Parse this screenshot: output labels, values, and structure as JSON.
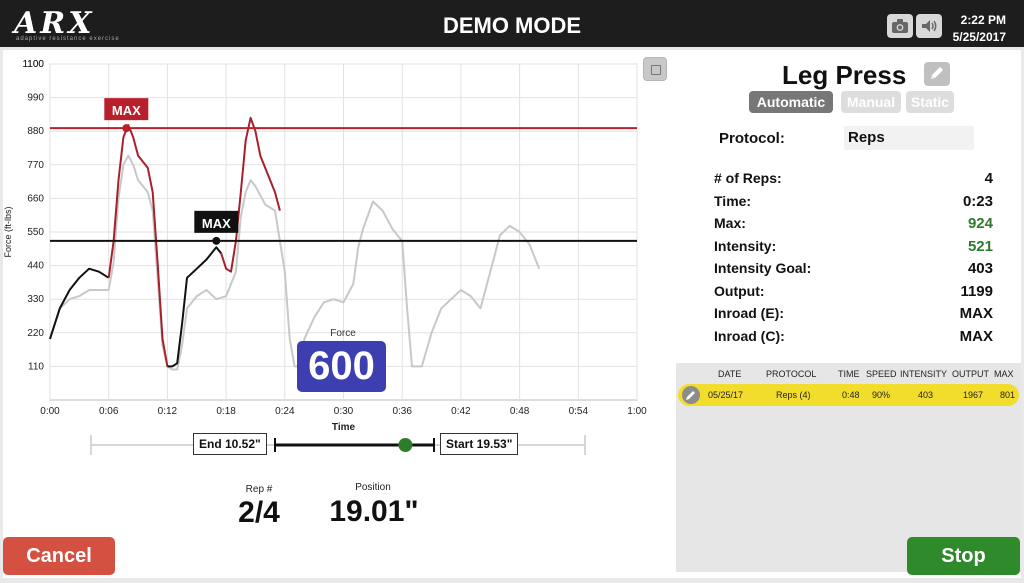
{
  "header": {
    "logo_text": "ARX",
    "logo_subtitle": "adaptive resistance exercise",
    "mode_title": "DEMO MODE",
    "time": "2:22 PM",
    "date": "5/25/2017",
    "camera_icon": "camera-icon",
    "sound_icon": "speaker-icon"
  },
  "chart_data": {
    "type": "line",
    "ylabel": "Force (ft-lbs)",
    "xlabel": "Time",
    "y_ticks": [
      "1100",
      "990",
      "880",
      "770",
      "660",
      "550",
      "440",
      "330",
      "220",
      "110"
    ],
    "x_ticks": [
      "0:00",
      "0:06",
      "0:12",
      "0:18",
      "0:24",
      "0:30",
      "0:36",
      "0:42",
      "0:48",
      "0:54",
      "1:00"
    ],
    "ylim": [
      0,
      1100
    ],
    "xlim": [
      0,
      60
    ],
    "grid": true,
    "reference_lines": [
      {
        "name": "MAX",
        "value": 890,
        "color": "#b8202c",
        "marker_x": 7.8
      },
      {
        "name": "MAX",
        "value": 521,
        "color": "#111111",
        "marker_x": 17.0
      }
    ],
    "series": [
      {
        "color": "#c8c8c8",
        "points": [
          [
            0,
            200
          ],
          [
            1,
            300
          ],
          [
            2,
            330
          ],
          [
            3,
            340
          ],
          [
            4,
            360
          ],
          [
            5,
            360
          ],
          [
            6,
            360
          ],
          [
            6.5,
            450
          ],
          [
            7,
            660
          ],
          [
            7.5,
            770
          ],
          [
            8,
            800
          ],
          [
            8.5,
            770
          ],
          [
            9,
            720
          ],
          [
            10,
            680
          ],
          [
            10.5,
            620
          ],
          [
            11,
            400
          ],
          [
            11.5,
            180
          ],
          [
            12,
            110
          ],
          [
            12.5,
            100
          ],
          [
            13,
            100
          ],
          [
            13.5,
            180
          ],
          [
            14,
            300
          ],
          [
            15,
            340
          ],
          [
            16,
            360
          ],
          [
            17,
            330
          ],
          [
            18,
            340
          ],
          [
            19,
            420
          ],
          [
            19.5,
            600
          ],
          [
            20,
            680
          ],
          [
            20.5,
            720
          ],
          [
            21,
            700
          ],
          [
            22,
            640
          ],
          [
            23,
            620
          ],
          [
            24,
            420
          ],
          [
            24.5,
            200
          ],
          [
            25,
            110
          ],
          [
            25.5,
            110
          ],
          [
            26,
            200
          ],
          [
            27,
            270
          ],
          [
            28,
            320
          ],
          [
            29,
            330
          ],
          [
            30,
            320
          ],
          [
            31,
            380
          ],
          [
            31.5,
            500
          ],
          [
            32,
            560
          ],
          [
            33,
            650
          ],
          [
            34,
            620
          ],
          [
            35,
            560
          ],
          [
            36,
            520
          ],
          [
            36.5,
            300
          ],
          [
            37,
            110
          ],
          [
            38,
            110
          ],
          [
            39,
            220
          ],
          [
            40,
            300
          ],
          [
            41,
            330
          ],
          [
            42,
            360
          ],
          [
            43,
            340
          ],
          [
            44,
            300
          ],
          [
            45,
            420
          ],
          [
            46,
            540
          ],
          [
            47,
            570
          ],
          [
            48,
            550
          ],
          [
            49,
            510
          ],
          [
            49.5,
            470
          ],
          [
            50,
            430
          ]
        ]
      },
      {
        "color": "#111111",
        "points": [
          [
            0,
            200
          ],
          [
            0.5,
            250
          ],
          [
            1,
            300
          ],
          [
            2,
            360
          ],
          [
            3,
            400
          ],
          [
            4,
            430
          ],
          [
            5,
            420
          ],
          [
            6,
            400
          ]
        ]
      },
      {
        "color": "#a8202c",
        "points": [
          [
            6,
            400
          ],
          [
            6.5,
            520
          ],
          [
            7,
            720
          ],
          [
            7.5,
            860
          ],
          [
            8,
            900
          ],
          [
            8.5,
            860
          ],
          [
            9,
            800
          ],
          [
            10,
            760
          ],
          [
            10.5,
            680
          ],
          [
            11,
            450
          ],
          [
            11.5,
            200
          ],
          [
            12,
            110
          ]
        ]
      },
      {
        "color": "#111111",
        "points": [
          [
            12,
            110
          ],
          [
            12.5,
            110
          ],
          [
            13,
            120
          ],
          [
            13.5,
            250
          ],
          [
            14,
            400
          ],
          [
            15,
            430
          ],
          [
            16,
            460
          ],
          [
            17,
            500
          ],
          [
            17.5,
            480
          ]
        ]
      },
      {
        "color": "#a8202c",
        "points": [
          [
            17.5,
            480
          ],
          [
            18,
            430
          ],
          [
            18.5,
            420
          ],
          [
            19,
            520
          ],
          [
            19.5,
            680
          ],
          [
            20,
            850
          ],
          [
            20.5,
            924
          ],
          [
            21,
            880
          ],
          [
            21.5,
            800
          ],
          [
            22,
            760
          ],
          [
            23,
            680
          ],
          [
            23.5,
            620
          ]
        ]
      }
    ]
  },
  "chart": {
    "max_tag_label": "MAX",
    "force_caption": "Force",
    "force_value": "600"
  },
  "position": {
    "end_label": "End 10.52\"",
    "start_label": "Start 19.53\"",
    "slider_fraction": 0.82,
    "rep_caption": "Rep #",
    "rep_value": "2/4",
    "position_caption": "Position",
    "position_value": "19.01\""
  },
  "exercise": {
    "title": "Leg Press",
    "edit_icon": "pencil-icon",
    "modes": [
      "Automatic",
      "Manual",
      "Static"
    ],
    "active_mode": "Automatic",
    "protocol_label": "Protocol:",
    "protocol_value": "Reps"
  },
  "stats": [
    {
      "label": "# of Reps:",
      "value": "4",
      "highlight": false
    },
    {
      "label": "Time:",
      "value": "0:23",
      "highlight": false
    },
    {
      "label": "Max:",
      "value": "924",
      "highlight": true
    },
    {
      "label": "Intensity:",
      "value": "521",
      "highlight": true
    },
    {
      "label": "Intensity Goal:",
      "value": "403",
      "highlight": false
    },
    {
      "label": "Output:",
      "value": "1199",
      "highlight": false
    },
    {
      "label": "Inroad (E):",
      "value": "MAX",
      "highlight": false
    },
    {
      "label": "Inroad (C):",
      "value": "MAX",
      "highlight": false
    }
  ],
  "history": {
    "headers": [
      "DATE",
      "PROTOCOL",
      "TIME",
      "SPEED",
      "INTENSITY",
      "OUTPUT",
      "MAX"
    ],
    "rows": [
      [
        "05/25/17",
        "Reps (4)",
        "0:48",
        "90%",
        "403",
        "1967",
        "801"
      ]
    ]
  },
  "footer": {
    "cancel_label": "Cancel",
    "stop_label": "Stop"
  }
}
